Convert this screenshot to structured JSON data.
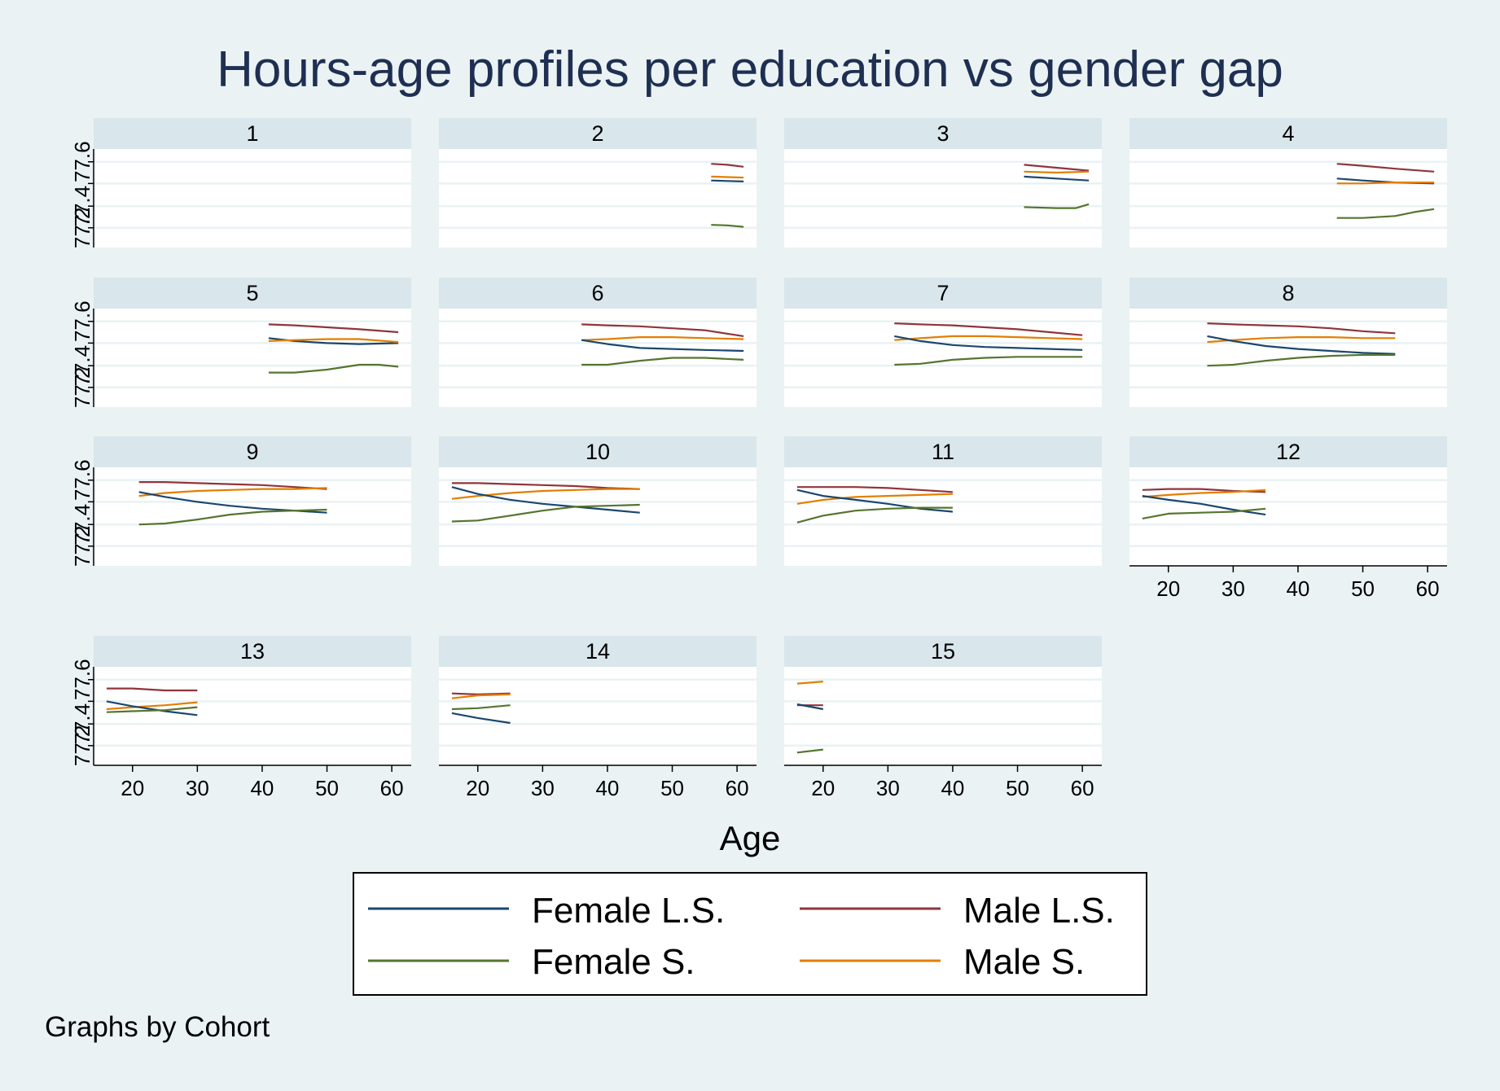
{
  "chart_data": {
    "type": "line",
    "title": "Hours-age profiles per education vs gender gap",
    "xlabel": "Age",
    "ylabel": "",
    "note": "Graphs by Cohort",
    "x_ticks": [
      20,
      30,
      40,
      50,
      60
    ],
    "y_tick_labels": [
      "77.2",
      "77.4",
      "77.6"
    ],
    "xlim": [
      14,
      63
    ],
    "ylim": [
      0,
      100
    ],
    "grid": true,
    "legend_position": "bottom",
    "colors": {
      "Female L.S.": "#1a476f",
      "Male L.S.": "#90353b",
      "Female S.": "#55752f",
      "Male S.": "#e37e00"
    },
    "legend": [
      "Female L.S.",
      "Male L.S.",
      "Female S.",
      "Male S."
    ],
    "panels": [
      {
        "label": "1",
        "series": []
      },
      {
        "label": "2",
        "series": [
          {
            "name": "Male L.S.",
            "x": [
              56,
              58.5,
              61
            ],
            "y": [
              85,
              84,
              82
            ]
          },
          {
            "name": "Male S.",
            "x": [
              56,
              58.5,
              61
            ],
            "y": [
              72,
              71.5,
              71
            ]
          },
          {
            "name": "Female L.S.",
            "x": [
              56,
              58.5,
              61
            ],
            "y": [
              68,
              67.5,
              67
            ]
          },
          {
            "name": "Female S.",
            "x": [
              56,
              58.5,
              61
            ],
            "y": [
              23,
              22.5,
              21
            ]
          }
        ]
      },
      {
        "label": "3",
        "series": [
          {
            "name": "Male L.S.",
            "x": [
              51,
              56,
              61
            ],
            "y": [
              84,
              81,
              78
            ]
          },
          {
            "name": "Male S.",
            "x": [
              51,
              56,
              61
            ],
            "y": [
              77,
              76,
              77
            ]
          },
          {
            "name": "Female L.S.",
            "x": [
              51,
              56,
              61
            ],
            "y": [
              72,
              70,
              68
            ]
          },
          {
            "name": "Female S.",
            "x": [
              51,
              56,
              59,
              61
            ],
            "y": [
              41,
              40,
              40,
              44
            ]
          }
        ]
      },
      {
        "label": "4",
        "series": [
          {
            "name": "Male L.S.",
            "x": [
              46,
              50,
              55,
              61
            ],
            "y": [
              85,
              83,
              80,
              77
            ]
          },
          {
            "name": "Female L.S.",
            "x": [
              46,
              50,
              55,
              61
            ],
            "y": [
              70,
              68,
              66,
              65
            ]
          },
          {
            "name": "Male S.",
            "x": [
              46,
              50,
              55,
              61
            ],
            "y": [
              65,
              65,
              66,
              66
            ]
          },
          {
            "name": "Female S.",
            "x": [
              46,
              50,
              55,
              58,
              61
            ],
            "y": [
              30,
              30,
              32,
              36,
              39
            ]
          }
        ]
      },
      {
        "label": "5",
        "series": [
          {
            "name": "Male L.S.",
            "x": [
              41,
              45,
              50,
              55,
              61
            ],
            "y": [
              84,
              83,
              81,
              79,
              76
            ]
          },
          {
            "name": "Female L.S.",
            "x": [
              41,
              45,
              50,
              55,
              61
            ],
            "y": [
              70,
              67,
              65,
              64,
              65
            ]
          },
          {
            "name": "Male S.",
            "x": [
              41,
              45,
              50,
              55,
              61
            ],
            "y": [
              67,
              68,
              69,
              69,
              66
            ]
          },
          {
            "name": "Female S.",
            "x": [
              41,
              45,
              50,
              55,
              58,
              61
            ],
            "y": [
              35,
              35,
              38,
              43,
              43,
              41
            ]
          }
        ]
      },
      {
        "label": "6",
        "series": [
          {
            "name": "Male L.S.",
            "x": [
              36,
              40,
              45,
              50,
              55,
              61
            ],
            "y": [
              84,
              83,
              82,
              80,
              78,
              72
            ]
          },
          {
            "name": "Male S.",
            "x": [
              36,
              40,
              45,
              50,
              55,
              61
            ],
            "y": [
              68,
              69,
              71,
              71,
              70,
              69
            ]
          },
          {
            "name": "Female L.S.",
            "x": [
              36,
              40,
              45,
              50,
              55,
              61
            ],
            "y": [
              68,
              64,
              60,
              59,
              58,
              57
            ]
          },
          {
            "name": "Female S.",
            "x": [
              36,
              40,
              45,
              50,
              55,
              61
            ],
            "y": [
              43,
              43,
              47,
              50,
              50,
              48
            ]
          }
        ]
      },
      {
        "label": "7",
        "series": [
          {
            "name": "Male L.S.",
            "x": [
              31,
              35,
              40,
              45,
              50,
              55,
              60
            ],
            "y": [
              85,
              84,
              83,
              81,
              79,
              76,
              73
            ]
          },
          {
            "name": "Male S.",
            "x": [
              31,
              35,
              40,
              45,
              50,
              55,
              60
            ],
            "y": [
              68,
              70,
              72,
              72,
              71,
              70,
              69
            ]
          },
          {
            "name": "Female L.S.",
            "x": [
              31,
              35,
              40,
              45,
              50,
              55,
              60
            ],
            "y": [
              72,
              67,
              63,
              61,
              60,
              59,
              58
            ]
          },
          {
            "name": "Female S.",
            "x": [
              31,
              35,
              40,
              45,
              50,
              55,
              60
            ],
            "y": [
              43,
              44,
              48,
              50,
              51,
              51,
              51
            ]
          }
        ]
      },
      {
        "label": "8",
        "series": [
          {
            "name": "Male L.S.",
            "x": [
              26,
              30,
              35,
              40,
              45,
              50,
              55
            ],
            "y": [
              85,
              84,
              83,
              82,
              80,
              77,
              75
            ]
          },
          {
            "name": "Male S.",
            "x": [
              26,
              30,
              35,
              40,
              45,
              50,
              55
            ],
            "y": [
              66,
              68,
              70,
              71,
              71,
              70,
              70
            ]
          },
          {
            "name": "Female L.S.",
            "x": [
              26,
              30,
              35,
              40,
              45,
              50,
              55
            ],
            "y": [
              72,
              67,
              62,
              59,
              57,
              55,
              54
            ]
          },
          {
            "name": "Female S.",
            "x": [
              26,
              30,
              35,
              40,
              45,
              50,
              55
            ],
            "y": [
              42,
              43,
              47,
              50,
              52,
              53,
              53
            ]
          }
        ]
      },
      {
        "label": "9",
        "series": [
          {
            "name": "Male L.S.",
            "x": [
              21,
              25,
              30,
              35,
              40,
              45,
              50
            ],
            "y": [
              85,
              85,
              84,
              83,
              82,
              80,
              78
            ]
          },
          {
            "name": "Male S.",
            "x": [
              21,
              25,
              30,
              35,
              40,
              45,
              50
            ],
            "y": [
              71,
              74,
              76,
              77,
              78,
              78,
              79
            ]
          },
          {
            "name": "Female L.S.",
            "x": [
              21,
              25,
              30,
              35,
              40,
              45,
              50
            ],
            "y": [
              75,
              70,
              65,
              61,
              58,
              56,
              54
            ]
          },
          {
            "name": "Female S.",
            "x": [
              21,
              25,
              30,
              35,
              40,
              45,
              50
            ],
            "y": [
              42,
              43,
              47,
              52,
              55,
              56,
              57
            ]
          }
        ]
      },
      {
        "label": "10",
        "series": [
          {
            "name": "Male L.S.",
            "x": [
              16,
              20,
              25,
              30,
              35,
              40,
              45
            ],
            "y": [
              84,
              84,
              83,
              82,
              81,
              79,
              78
            ]
          },
          {
            "name": "Male S.",
            "x": [
              16,
              20,
              25,
              30,
              35,
              40,
              45
            ],
            "y": [
              68,
              71,
              74,
              76,
              77,
              78,
              78
            ]
          },
          {
            "name": "Female L.S.",
            "x": [
              16,
              20,
              25,
              30,
              35,
              40,
              45
            ],
            "y": [
              80,
              73,
              67,
              63,
              60,
              57,
              54
            ]
          },
          {
            "name": "Female S.",
            "x": [
              16,
              20,
              25,
              30,
              35,
              40,
              45
            ],
            "y": [
              45,
              46,
              51,
              56,
              60,
              61,
              62
            ]
          }
        ]
      },
      {
        "label": "11",
        "series": [
          {
            "name": "Male L.S.",
            "x": [
              16,
              20,
              25,
              30,
              35,
              40
            ],
            "y": [
              80,
              80,
              80,
              79,
              77,
              75
            ]
          },
          {
            "name": "Male S.",
            "x": [
              16,
              20,
              25,
              30,
              35,
              40
            ],
            "y": [
              63,
              67,
              70,
              71,
              72,
              73
            ]
          },
          {
            "name": "Female L.S.",
            "x": [
              16,
              20,
              25,
              30,
              35,
              40
            ],
            "y": [
              77,
              71,
              67,
              63,
              58,
              55
            ]
          },
          {
            "name": "Female S.",
            "x": [
              16,
              20,
              25,
              30,
              35,
              40
            ],
            "y": [
              44,
              51,
              56,
              58,
              59,
              59
            ]
          }
        ]
      },
      {
        "label": "12",
        "series": [
          {
            "name": "Male L.S.",
            "x": [
              16,
              20,
              25,
              30,
              35
            ],
            "y": [
              77,
              78,
              78,
              76,
              75
            ]
          },
          {
            "name": "Male S.",
            "x": [
              16,
              20,
              25,
              30,
              35
            ],
            "y": [
              70,
              72,
              74,
              75,
              77
            ]
          },
          {
            "name": "Female L.S.",
            "x": [
              16,
              20,
              25,
              30,
              35
            ],
            "y": [
              71,
              67,
              63,
              57,
              52
            ]
          },
          {
            "name": "Female S.",
            "x": [
              16,
              20,
              25,
              30,
              35
            ],
            "y": [
              48,
              53,
              54,
              55,
              58
            ]
          }
        ]
      },
      {
        "label": "13",
        "series": [
          {
            "name": "Male L.S.",
            "x": [
              16,
              20,
              25,
              30
            ],
            "y": [
              78,
              78,
              76,
              76
            ]
          },
          {
            "name": "Male S.",
            "x": [
              16,
              20,
              25,
              30
            ],
            "y": [
              57,
              59,
              61,
              64
            ]
          },
          {
            "name": "Female L.S.",
            "x": [
              16,
              20,
              25,
              30
            ],
            "y": [
              65,
              60,
              55,
              51
            ]
          },
          {
            "name": "Female S.",
            "x": [
              16,
              20,
              25,
              30
            ],
            "y": [
              54,
              55,
              56,
              59
            ]
          }
        ]
      },
      {
        "label": "14",
        "series": [
          {
            "name": "Male L.S.",
            "x": [
              16,
              20,
              25
            ],
            "y": [
              73,
              72,
              73
            ]
          },
          {
            "name": "Male S.",
            "x": [
              16,
              20,
              25
            ],
            "y": [
              68,
              71,
              72
            ]
          },
          {
            "name": "Female L.S.",
            "x": [
              16,
              20,
              25
            ],
            "y": [
              53,
              48,
              43
            ]
          },
          {
            "name": "Female S.",
            "x": [
              16,
              20,
              25
            ],
            "y": [
              57,
              58,
              61
            ]
          }
        ]
      },
      {
        "label": "15",
        "series": [
          {
            "name": "Male S.",
            "x": [
              16,
              20
            ],
            "y": [
              83,
              85
            ]
          },
          {
            "name": "Male L.S.",
            "x": [
              16,
              20
            ],
            "y": [
              61,
              61
            ]
          },
          {
            "name": "Female L.S.",
            "x": [
              16,
              20
            ],
            "y": [
              62,
              57
            ]
          },
          {
            "name": "Female S.",
            "x": [
              16,
              20
            ],
            "y": [
              13,
              16
            ]
          }
        ]
      }
    ]
  }
}
